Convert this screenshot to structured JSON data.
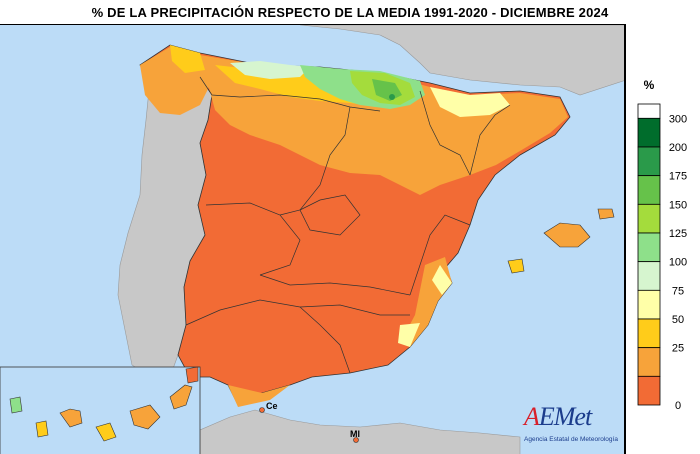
{
  "title": "% DE LA PRECIPITACIÓN RESPECTO DE LA MEDIA 1991-2020 - DICIEMBRE 2024",
  "legend": {
    "unit": "%",
    "levels": [
      {
        "label": "300",
        "color": "#006d2c"
      },
      {
        "label": "200",
        "color": "#2a9a4a"
      },
      {
        "label": "175",
        "color": "#66c24a"
      },
      {
        "label": "150",
        "color": "#a4dc3c"
      },
      {
        "label": "125",
        "color": "#8ee08a"
      },
      {
        "label": "100",
        "color": "#d6f5cf"
      },
      {
        "label": "75",
        "color": "#ffffa8"
      },
      {
        "label": "50",
        "color": "#ffcc1a"
      },
      {
        "label": "25",
        "color": "#f7a33a"
      },
      {
        "label": "0",
        "color": "#f26b35"
      }
    ],
    "top_color": "#ffffff"
  },
  "map_labels": {
    "ceuta": "Ce",
    "melilla": "Ml"
  },
  "colors": {
    "sea": "#bcdcf7",
    "neighbor_land": "#c8c8c8",
    "border": "#333333"
  },
  "logo": {
    "text_a": "A",
    "text_rest": "EMet",
    "subtitle": "Agencia Estatal de Meteorología"
  }
}
